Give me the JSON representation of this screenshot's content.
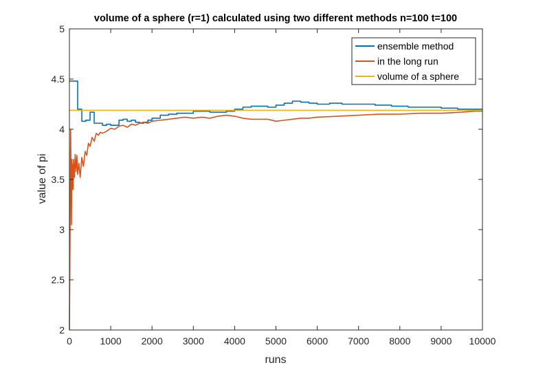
{
  "chart_data": {
    "type": "line",
    "title": "volume of a sphere (r=1) calculated using two different methods n=100  t=100",
    "xlabel": "runs",
    "ylabel": "value of pi",
    "xlim": [
      0,
      10000
    ],
    "ylim": [
      2,
      5
    ],
    "xticks": [
      0,
      1000,
      2000,
      3000,
      4000,
      5000,
      6000,
      7000,
      8000,
      9000,
      10000
    ],
    "yticks": [
      2,
      2.5,
      3,
      3.5,
      4,
      4.5,
      5
    ],
    "ytick_labels": [
      "2",
      "2.5",
      "3",
      "3.5",
      "4",
      "4.5",
      "5"
    ],
    "grid": false,
    "legend_position": "top-right",
    "series": [
      {
        "name": "ensemble method",
        "color": "#0072BD",
        "step": true,
        "x": [
          0,
          100,
          200,
          300,
          400,
          500,
          600,
          700,
          800,
          900,
          1000,
          1100,
          1200,
          1300,
          1400,
          1500,
          1600,
          1700,
          1800,
          1900,
          2000,
          2200,
          2400,
          2600,
          2800,
          3000,
          3200,
          3400,
          3600,
          3800,
          4000,
          4200,
          4400,
          4600,
          4800,
          5000,
          5200,
          5400,
          5600,
          5800,
          6000,
          6300,
          6600,
          7000,
          7400,
          7800,
          8200,
          8600,
          9000,
          9400,
          9800,
          10000
        ],
        "y": [
          4.48,
          4.48,
          4.2,
          4.08,
          4.09,
          4.17,
          4.06,
          4.06,
          4.04,
          4.05,
          4.04,
          4.04,
          4.09,
          4.1,
          4.08,
          4.09,
          4.07,
          4.06,
          4.07,
          4.09,
          4.11,
          4.14,
          4.15,
          4.16,
          4.16,
          4.18,
          4.18,
          4.17,
          4.17,
          4.18,
          4.2,
          4.22,
          4.23,
          4.23,
          4.22,
          4.24,
          4.26,
          4.28,
          4.27,
          4.26,
          4.25,
          4.26,
          4.25,
          4.25,
          4.24,
          4.23,
          4.22,
          4.22,
          4.21,
          4.2,
          4.2,
          4.2
        ]
      },
      {
        "name": "in the long run",
        "color": "#D95319",
        "step": false,
        "x": [
          0,
          10,
          20,
          30,
          40,
          50,
          60,
          70,
          80,
          90,
          100,
          120,
          140,
          160,
          180,
          200,
          230,
          260,
          300,
          340,
          380,
          420,
          460,
          500,
          550,
          600,
          650,
          700,
          750,
          800,
          900,
          1000,
          1100,
          1200,
          1300,
          1400,
          1500,
          1600,
          1700,
          1800,
          1900,
          2000,
          2200,
          2400,
          2600,
          2800,
          3000,
          3200,
          3400,
          3600,
          3800,
          4000,
          4200,
          4400,
          4600,
          4800,
          5000,
          5200,
          5400,
          5600,
          5800,
          6000,
          6500,
          7000,
          7500,
          8000,
          8500,
          9000,
          9500,
          9800,
          10000
        ],
        "y": [
          2.0,
          2.6,
          3.3,
          4.0,
          3.5,
          3.05,
          3.7,
          3.4,
          3.65,
          3.4,
          3.7,
          3.52,
          3.75,
          3.58,
          3.74,
          3.55,
          3.66,
          3.52,
          3.72,
          3.63,
          3.78,
          3.74,
          3.86,
          3.83,
          3.92,
          3.88,
          3.96,
          3.94,
          3.97,
          3.96,
          3.98,
          4.01,
          4.0,
          4.03,
          4.04,
          4.02,
          4.05,
          4.04,
          4.06,
          4.07,
          4.06,
          4.08,
          4.09,
          4.1,
          4.11,
          4.12,
          4.11,
          4.12,
          4.11,
          4.13,
          4.14,
          4.13,
          4.11,
          4.1,
          4.1,
          4.1,
          4.08,
          4.09,
          4.1,
          4.11,
          4.11,
          4.12,
          4.13,
          4.14,
          4.15,
          4.15,
          4.16,
          4.16,
          4.17,
          4.18,
          4.18
        ]
      },
      {
        "name": "volume of a sphere",
        "color": "#EDB120",
        "step": false,
        "x": [
          0,
          10000
        ],
        "y": [
          4.18879,
          4.18879
        ]
      }
    ]
  }
}
